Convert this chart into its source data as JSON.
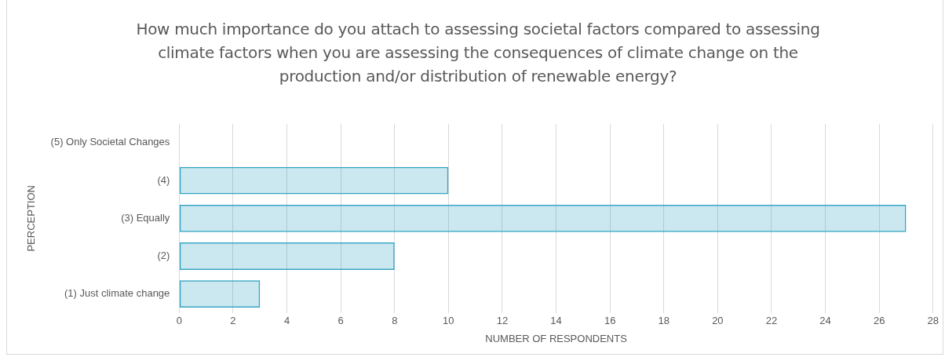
{
  "chart_data": {
    "type": "bar",
    "orientation": "horizontal",
    "title": "How much importance do you attach to assessing  societal factors compared to assessing  climate factors when you are assessing the consequences of climate change on the production and/or distribution  of renewable energy?",
    "xlabel": "NUMBER OF RESPONDENTS",
    "ylabel": "PERCEPTION",
    "categories": [
      "(5) Only Societal Changes",
      "(4)",
      "(3) Equally",
      "(2)",
      "(1) Just climate change"
    ],
    "values": [
      0,
      10,
      27,
      8,
      3
    ],
    "color": "#31a3c4",
    "xlim": [
      0,
      28
    ],
    "xticks": [
      0,
      2,
      4,
      6,
      8,
      10,
      12,
      14,
      16,
      18,
      20,
      22,
      24,
      26,
      28
    ],
    "grid": "x",
    "legend": false
  }
}
